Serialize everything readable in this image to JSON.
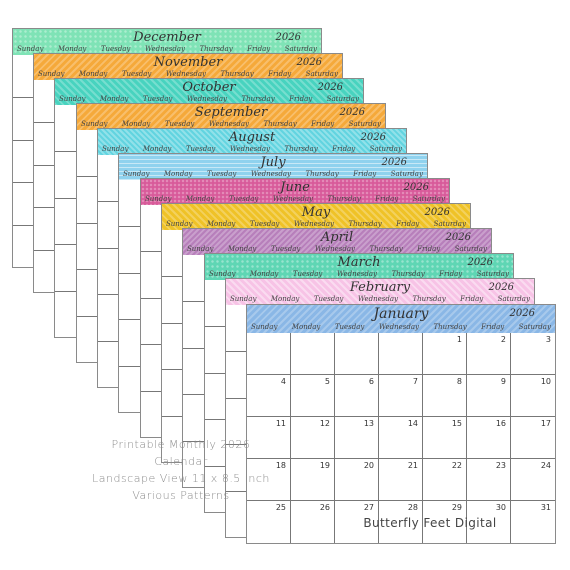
{
  "year": "2026",
  "weekdays": [
    "Sunday",
    "Monday",
    "Tuesday",
    "Wednesday",
    "Thursday",
    "Friday",
    "Saturday"
  ],
  "sheets": [
    {
      "month": "December"
    },
    {
      "month": "November"
    },
    {
      "month": "October"
    },
    {
      "month": "September"
    },
    {
      "month": "August"
    },
    {
      "month": "July"
    },
    {
      "month": "June"
    },
    {
      "month": "May"
    },
    {
      "month": "April"
    },
    {
      "month": "March"
    },
    {
      "month": "February"
    }
  ],
  "january": {
    "month": "January",
    "rows": [
      [
        "",
        "",
        "",
        "",
        "1",
        "2",
        "3"
      ],
      [
        "4",
        "5",
        "6",
        "7",
        "8",
        "9",
        "10"
      ],
      [
        "11",
        "12",
        "13",
        "14",
        "15",
        "16",
        "17"
      ],
      [
        "18",
        "19",
        "20",
        "21",
        "22",
        "23",
        "24"
      ],
      [
        "25",
        "26",
        "27",
        "28",
        "29",
        "30",
        "31"
      ]
    ]
  },
  "caption": {
    "line1": "Printable Monthly 2026 Calendar",
    "line2": "Landscape View 11 x 8.5 inch",
    "line3": "Various Patterns"
  },
  "signature": "Butterfly Feet Digital"
}
